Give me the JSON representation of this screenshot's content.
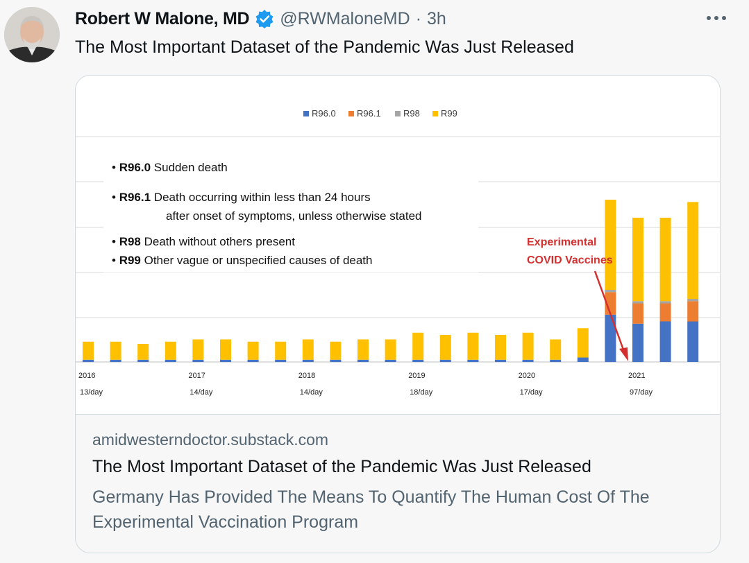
{
  "tweet": {
    "author_name": "Robert W Malone, MD",
    "handle": "@RWMaloneMD",
    "separator": "·",
    "time": "3h",
    "text": "The Most Important Dataset of the Pandemic Was Just Released",
    "more_icon": "more-icon"
  },
  "card": {
    "domain": "amidwesterndoctor.substack.com",
    "title": "The Most Important Dataset of the Pandemic Was Just Released",
    "description": "Germany Has Provided The Means To Quantify The Human Cost Of The Experimental Vaccination Program"
  },
  "chart_data": {
    "type": "bar",
    "stacked": true,
    "series": [
      {
        "name": "R96.0",
        "color": "#4472c4",
        "values": [
          1,
          1,
          1,
          1,
          1,
          1,
          1,
          1,
          1,
          1,
          1,
          1,
          1,
          1,
          1,
          1,
          1,
          1,
          2,
          21,
          17,
          18,
          18
        ]
      },
      {
        "name": "R96.1",
        "color": "#ed7d31",
        "values": [
          0,
          0,
          0,
          0,
          0,
          0,
          0,
          0,
          0,
          0,
          0,
          0,
          0,
          0,
          0,
          0,
          0,
          0,
          0,
          10,
          9,
          8,
          9
        ]
      },
      {
        "name": "R98",
        "color": "#a5a5a5",
        "values": [
          0,
          0,
          0,
          0,
          0,
          0,
          0,
          0,
          0,
          0,
          0,
          0,
          0,
          0,
          0,
          0,
          0,
          0,
          0,
          1,
          1,
          1,
          1
        ]
      },
      {
        "name": "R99",
        "color": "#ffc000",
        "values": [
          8,
          8,
          7,
          8,
          9,
          9,
          8,
          8,
          9,
          8,
          9,
          9,
          12,
          11,
          12,
          11,
          12,
          9,
          13,
          40,
          37,
          37,
          43
        ]
      }
    ],
    "legend": [
      "R96.0",
      "R96.1",
      "R98",
      "R99"
    ],
    "ylim": [
      0,
      100
    ],
    "year_labels": [
      {
        "year": "2016",
        "rate": "13/day",
        "index": 0
      },
      {
        "year": "2017",
        "rate": "14/day",
        "index": 4
      },
      {
        "year": "2018",
        "rate": "14/day",
        "index": 8
      },
      {
        "year": "2019",
        "rate": "18/day",
        "index": 12
      },
      {
        "year": "2020",
        "rate": "17/day",
        "index": 16
      },
      {
        "year": "2021",
        "rate": "97/day",
        "index": 20
      }
    ],
    "notes": [
      {
        "code": "R96.0",
        "text": "Sudden death"
      },
      {
        "code": "R96.1",
        "text": "Death occurring within less than 24 hours",
        "continuation": "after onset of symptoms, unless otherwise stated"
      },
      {
        "code": "R98",
        "text": "Death without others present"
      },
      {
        "code": "R99",
        "text": "Other vague or unspecified causes of death"
      }
    ],
    "annotation": {
      "line1": "Experimental",
      "line2": "COVID Vaccines",
      "color": "#d32f2f"
    },
    "gridlines": true,
    "legend_position": "top-center"
  }
}
